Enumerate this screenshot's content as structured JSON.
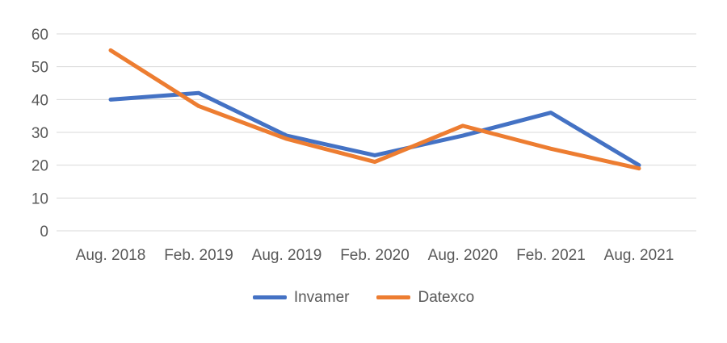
{
  "chart_data": {
    "type": "line",
    "categories": [
      "Aug. 2018",
      "Feb. 2019",
      "Aug. 2019",
      "Feb. 2020",
      "Aug. 2020",
      "Feb. 2021",
      "Aug. 2021"
    ],
    "series": [
      {
        "name": "Invamer",
        "color": "#4472C4",
        "values": [
          40,
          42,
          29,
          23,
          29,
          36,
          20
        ]
      },
      {
        "name": "Datexco",
        "color": "#ED7D31",
        "values": [
          55,
          38,
          28,
          21,
          32,
          25,
          19
        ]
      }
    ],
    "title": "",
    "xlabel": "",
    "ylabel": "",
    "ylim": [
      0,
      60
    ],
    "yticks": [
      0,
      10,
      20,
      30,
      40,
      50,
      60
    ],
    "grid": true,
    "gridline_color": "#D9D9D9",
    "tick_label_color": "#595959",
    "legend_position": "bottom"
  }
}
